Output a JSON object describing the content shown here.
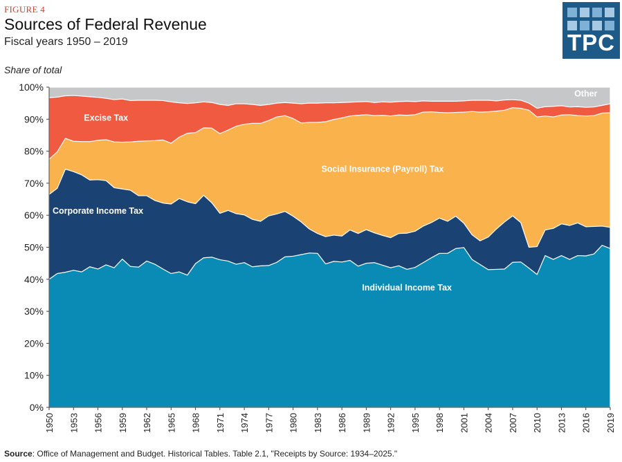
{
  "figure_label": "FIGURE 4",
  "title": "Sources of Federal Revenue",
  "subtitle": "Fiscal years 1950 – 2019",
  "y_axis_title": "Share of total",
  "logo_text": "TPC",
  "source_label": "Source",
  "source_text": ": Office of Management and Budget. Historical Tables. Table 2.1, \"Receipts by Source: 1934–2025.\"",
  "colors": {
    "individual": "#0a8bb5",
    "corporate": "#1a4272",
    "social": "#f9b24c",
    "excise": "#ef5a41",
    "other": "#c6c7c9",
    "logo_bg": "#1e5a87"
  },
  "chart_data": {
    "type": "area",
    "stacked": true,
    "x_start": 1950,
    "x_end": 2019,
    "ylim": [
      0,
      100
    ],
    "yticks": [
      0,
      10,
      20,
      30,
      40,
      50,
      60,
      70,
      80,
      90,
      100
    ],
    "ytick_labels": [
      "0%",
      "10%",
      "20%",
      "30%",
      "40%",
      "50%",
      "60%",
      "70%",
      "80%",
      "90%",
      "100%"
    ],
    "xtick_labels": [
      "1950",
      "1953",
      "1956",
      "1959",
      "1962",
      "1965",
      "1968",
      "1971",
      "1974",
      "1977",
      "1980",
      "1983",
      "1986",
      "1989",
      "1992",
      "1995",
      "1998",
      "2001",
      "2004",
      "2007",
      "2010",
      "2013",
      "2016",
      "2019"
    ],
    "series_order_bottom_to_top": [
      "individual",
      "corporate",
      "social",
      "excise",
      "other"
    ],
    "cumulative": {
      "individual": [
        40.0,
        41.8,
        42.2,
        42.8,
        42.3,
        43.9,
        43.2,
        44.5,
        43.6,
        46.3,
        44.0,
        43.8,
        45.7,
        44.7,
        43.2,
        41.8,
        42.3,
        41.3,
        44.9,
        46.7,
        46.9,
        46.1,
        45.7,
        44.7,
        45.2,
        43.9,
        44.2,
        44.3,
        45.3,
        47.0,
        47.2,
        47.7,
        48.2,
        48.1,
        44.8,
        45.6,
        45.4,
        45.9,
        44.1,
        45.0,
        45.2,
        44.4,
        43.6,
        44.2,
        43.1,
        43.7,
        45.2,
        46.7,
        48.1,
        48.1,
        49.6,
        49.9,
        46.2,
        44.6,
        43.0,
        43.1,
        43.2,
        45.3,
        45.4,
        43.5,
        41.5,
        47.4,
        46.2,
        47.4,
        46.2,
        47.4,
        47.3,
        47.9,
        50.6,
        49.6
      ],
      "corporate": [
        66.5,
        68.4,
        74.4,
        73.6,
        72.6,
        71.0,
        71.1,
        70.8,
        68.6,
        68.2,
        67.8,
        66.1,
        66.1,
        64.6,
        63.8,
        63.5,
        65.2,
        64.2,
        63.6,
        66.2,
        63.9,
        60.6,
        61.5,
        60.5,
        60.1,
        58.7,
        58.1,
        59.8,
        60.4,
        61.2,
        59.7,
        57.9,
        55.7,
        54.3,
        53.3,
        53.8,
        53.5,
        55.4,
        54.3,
        55.5,
        54.5,
        53.7,
        53.0,
        54.3,
        54.4,
        55.0,
        56.6,
        57.7,
        59.1,
        58.1,
        59.7,
        57.5,
        53.9,
        52.0,
        53.2,
        55.7,
        57.9,
        59.8,
        57.7,
        50.0,
        50.2,
        55.4,
        55.9,
        57.3,
        56.8,
        57.6,
        56.4,
        56.5,
        56.6,
        56.2
      ],
      "social": [
        77.5,
        79.8,
        84.0,
        83.1,
        83.0,
        83.0,
        83.4,
        83.6,
        82.9,
        82.8,
        82.9,
        83.1,
        83.2,
        83.3,
        83.5,
        82.5,
        84.4,
        85.6,
        85.8,
        87.3,
        87.2,
        85.5,
        86.6,
        87.8,
        88.4,
        88.7,
        88.7,
        89.6,
        90.7,
        91.1,
        90.2,
        88.8,
        89.0,
        89.0,
        89.2,
        89.9,
        90.4,
        91.0,
        91.2,
        91.4,
        91.1,
        91.2,
        91.0,
        91.3,
        91.2,
        91.4,
        92.2,
        92.3,
        92.1,
        92.0,
        92.1,
        92.2,
        92.4,
        92.2,
        92.3,
        92.5,
        92.8,
        93.6,
        93.4,
        92.8,
        90.7,
        91.0,
        90.7,
        91.3,
        91.4,
        91.1,
        91.0,
        91.1,
        91.9,
        92.0
      ],
      "excise": [
        96.7,
        96.9,
        97.3,
        97.4,
        97.2,
        97.0,
        96.8,
        96.5,
        96.1,
        96.3,
        95.8,
        95.9,
        95.9,
        95.9,
        95.8,
        95.4,
        95.1,
        94.9,
        95.1,
        95.4,
        95.2,
        94.6,
        94.3,
        94.8,
        94.8,
        94.6,
        94.3,
        94.6,
        95.0,
        95.2,
        95.0,
        94.8,
        95.0,
        95.0,
        95.1,
        95.1,
        95.2,
        95.3,
        95.4,
        95.5,
        95.2,
        95.4,
        95.3,
        95.5,
        95.6,
        95.5,
        95.7,
        95.6,
        95.6,
        95.6,
        95.6,
        95.7,
        95.9,
        95.9,
        95.9,
        95.7,
        96.0,
        96.1,
        95.9,
        95.0,
        93.4,
        93.9,
        94.0,
        94.2,
        93.8,
        93.9,
        93.7,
        93.8,
        94.3,
        94.8
      ],
      "other": [
        100,
        100,
        100,
        100,
        100,
        100,
        100,
        100,
        100,
        100,
        100,
        100,
        100,
        100,
        100,
        100,
        100,
        100,
        100,
        100,
        100,
        100,
        100,
        100,
        100,
        100,
        100,
        100,
        100,
        100,
        100,
        100,
        100,
        100,
        100,
        100,
        100,
        100,
        100,
        100,
        100,
        100,
        100,
        100,
        100,
        100,
        100,
        100,
        100,
        100,
        100,
        100,
        100,
        100,
        100,
        100,
        100,
        100,
        100,
        100,
        100,
        100,
        100,
        100,
        100,
        100,
        100,
        100,
        100,
        100
      ]
    },
    "labels": {
      "individual": "Individual Income Tax",
      "corporate": "Corporate Income Tax",
      "social": "Social Insurance (Payroll) Tax",
      "excise": "Excise Tax",
      "other": "Other"
    }
  }
}
